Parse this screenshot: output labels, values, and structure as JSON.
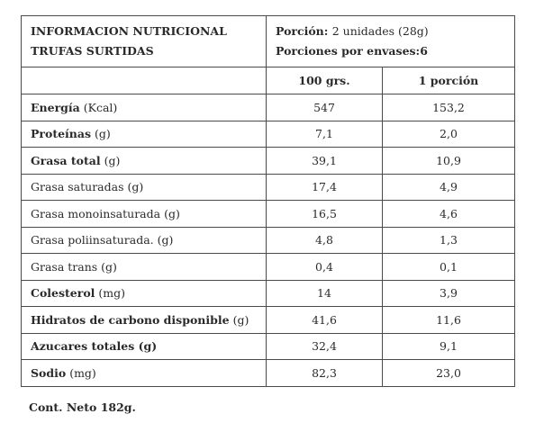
{
  "header": {
    "title_line1": "INFORMACION NUTRICIONAL",
    "title_line2": "TRUFAS SURTIDAS",
    "portion_label": "Porción:",
    "portion_value": "2 unidades (28g)",
    "servings_label": "Porciones por envases:",
    "servings_value": "6"
  },
  "columns": {
    "per100": "100 grs.",
    "perPortion": "1 porción"
  },
  "rows": [
    {
      "name": "Energía",
      "unit": "(Kcal)",
      "bold": true,
      "per100": "547",
      "perPortion": "153,2"
    },
    {
      "name": "Proteínas",
      "unit": "(g)",
      "bold": true,
      "per100": "7,1",
      "perPortion": "2,0"
    },
    {
      "name": "Grasa total",
      "unit": "(g)",
      "bold": true,
      "per100": "39,1",
      "perPortion": "10,9"
    },
    {
      "name": "Grasa saturadas",
      "unit": "(g)",
      "bold": false,
      "per100": "17,4",
      "perPortion": "4,9"
    },
    {
      "name": "Grasa monoinsaturada",
      "unit": "(g)",
      "bold": false,
      "per100": "16,5",
      "perPortion": "4,6"
    },
    {
      "name": "Grasa poliinsaturada.",
      "unit": "(g)",
      "bold": false,
      "per100": "4,8",
      "perPortion": "1,3"
    },
    {
      "name": "Grasa trans",
      "unit": "(g)",
      "bold": false,
      "per100": "0,4",
      "perPortion": "0,1"
    },
    {
      "name": "Colesterol",
      "unit": "(mg)",
      "bold": true,
      "per100": "14",
      "perPortion": "3,9"
    },
    {
      "name": "Hidratos de carbono disponible",
      "unit": "(g)",
      "bold": true,
      "per100": "41,6",
      "perPortion": "11,6"
    },
    {
      "name": "Azucares totales (g)",
      "unit": "",
      "bold": true,
      "per100": "32,4",
      "perPortion": "9,1"
    },
    {
      "name": "Sodio",
      "unit": "(mg)",
      "bold": true,
      "per100": "82,3",
      "perPortion": "23,0"
    }
  ],
  "footer": "Cont. Neto 182g."
}
